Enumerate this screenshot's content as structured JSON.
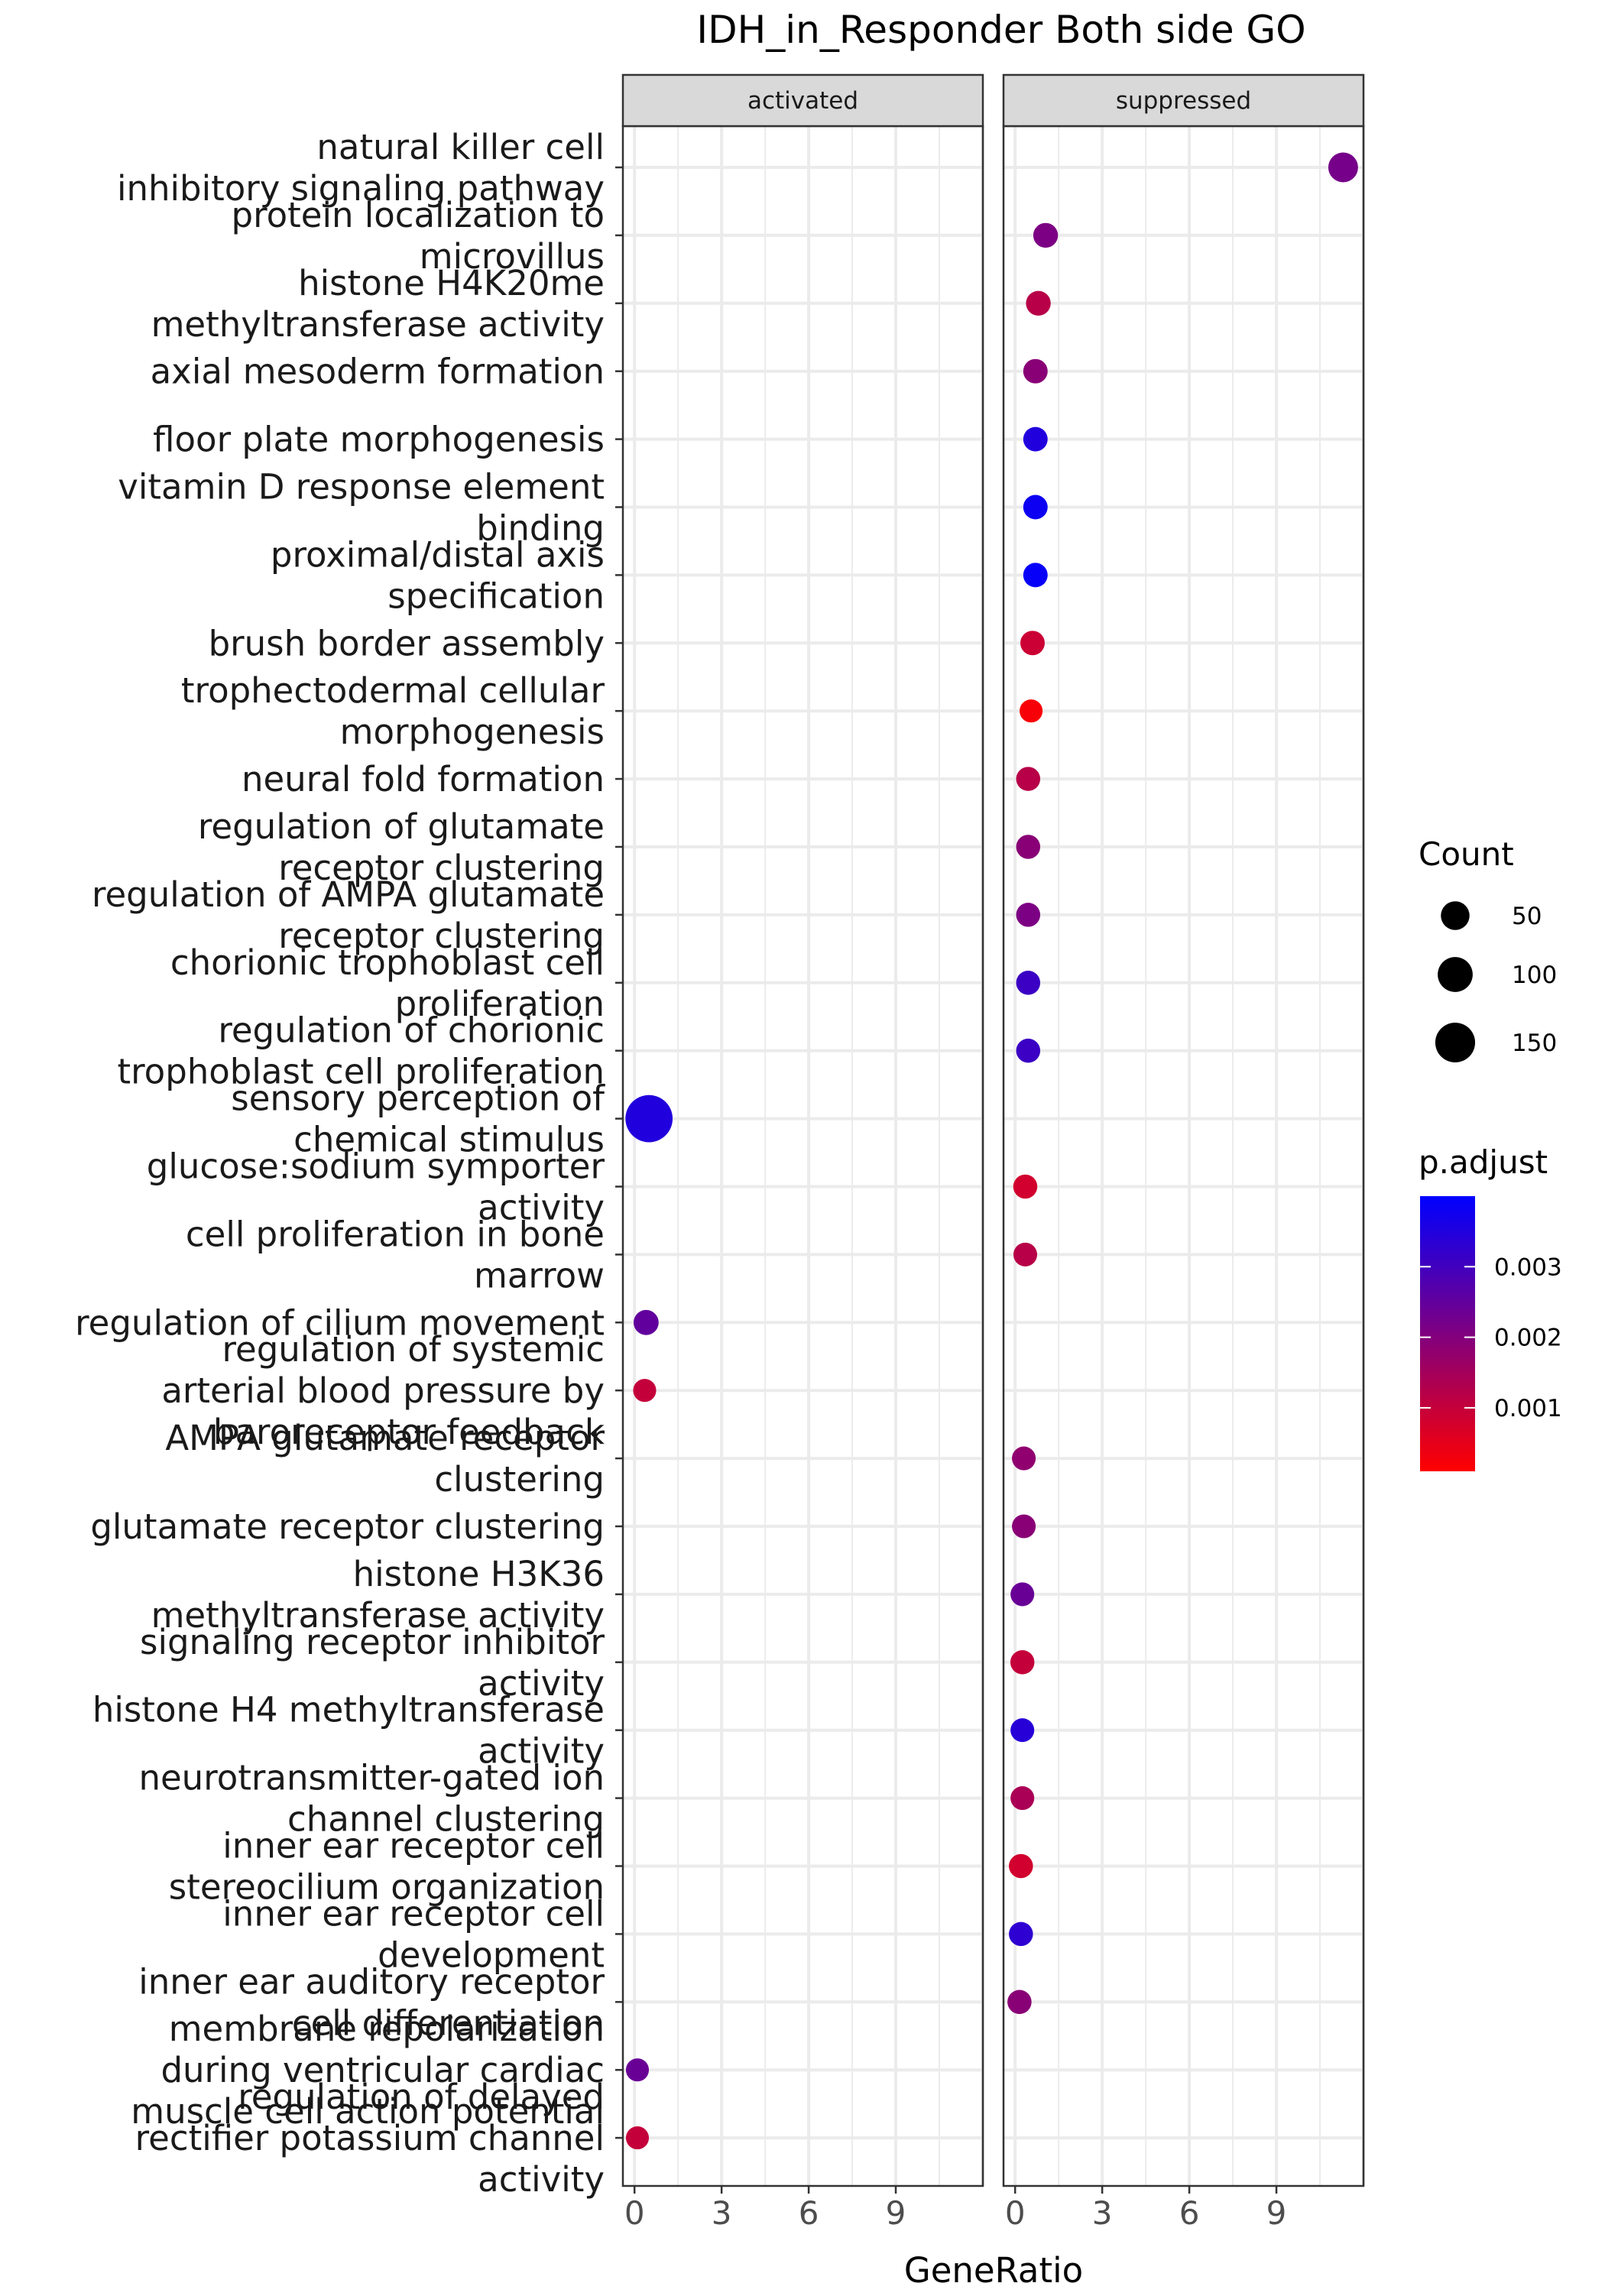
{
  "chart_data": {
    "type": "scatter",
    "title": "IDH_in_Responder Both side GO",
    "xlabel": "GeneRatio",
    "ylabel": "",
    "panels": [
      "activated",
      "suppressed"
    ],
    "xlim": [
      -0.4,
      12
    ],
    "xticks": [
      "0",
      "3",
      "6",
      "9"
    ],
    "grid": true,
    "categories": [
      [
        "natural killer cell",
        "inhibitory signaling pathway"
      ],
      [
        "protein localization to",
        "microvillus"
      ],
      [
        "histone H4K20me",
        "methyltransferase activity"
      ],
      [
        "axial mesoderm formation"
      ],
      [
        "floor plate morphogenesis"
      ],
      [
        "vitamin D response element",
        "binding"
      ],
      [
        "proximal/distal axis",
        "specification"
      ],
      [
        "brush border assembly"
      ],
      [
        "trophectodermal cellular",
        "morphogenesis"
      ],
      [
        "neural fold formation"
      ],
      [
        "regulation of glutamate",
        "receptor clustering"
      ],
      [
        "regulation of AMPA glutamate",
        "receptor clustering"
      ],
      [
        "chorionic trophoblast cell",
        "proliferation"
      ],
      [
        "regulation of chorionic",
        "trophoblast cell proliferation"
      ],
      [
        "sensory perception of",
        "chemical stimulus"
      ],
      [
        "glucose:sodium symporter",
        "activity"
      ],
      [
        "cell proliferation in bone",
        "marrow"
      ],
      [
        "regulation of cilium movement"
      ],
      [
        "regulation of systemic",
        "arterial blood pressure by",
        "baroreceptor feedback"
      ],
      [
        "AMPA glutamate receptor",
        "clustering"
      ],
      [
        "glutamate receptor clustering"
      ],
      [
        "histone H3K36",
        "methyltransferase activity"
      ],
      [
        "signaling receptor inhibitor",
        "activity"
      ],
      [
        "histone H4 methyltransferase",
        "activity"
      ],
      [
        "neurotransmitter-gated ion",
        "channel clustering"
      ],
      [
        "inner ear receptor cell",
        "stereocilium organization"
      ],
      [
        "inner ear receptor cell",
        "development"
      ],
      [
        "inner ear auditory receptor",
        "cell differentiation"
      ],
      [
        "membrane repolarization",
        "during ventricular cardiac",
        "muscle cell action potential"
      ],
      [
        "regulation of delayed",
        "rectifier potassium channel",
        "activity"
      ]
    ],
    "points": [
      {
        "panel": "suppressed",
        "category": 0,
        "x": 11.3,
        "count": 35,
        "padjust": 0.0022
      },
      {
        "panel": "suppressed",
        "category": 1,
        "x": 1.05,
        "count": 15,
        "padjust": 0.0021
      },
      {
        "panel": "suppressed",
        "category": 2,
        "x": 0.8,
        "count": 15,
        "padjust": 0.0012
      },
      {
        "panel": "suppressed",
        "category": 3,
        "x": 0.7,
        "count": 14,
        "padjust": 0.0019
      },
      {
        "panel": "suppressed",
        "category": 4,
        "x": 0.7,
        "count": 14,
        "padjust": 0.0035
      },
      {
        "panel": "suppressed",
        "category": 5,
        "x": 0.7,
        "count": 14,
        "padjust": 0.0038
      },
      {
        "panel": "suppressed",
        "category": 6,
        "x": 0.7,
        "count": 14,
        "padjust": 0.0039
      },
      {
        "panel": "suppressed",
        "category": 7,
        "x": 0.6,
        "count": 14,
        "padjust": 0.0009
      },
      {
        "panel": "suppressed",
        "category": 8,
        "x": 0.55,
        "count": 10,
        "padjust": 0.0002
      },
      {
        "panel": "suppressed",
        "category": 9,
        "x": 0.45,
        "count": 13,
        "padjust": 0.0012
      },
      {
        "panel": "suppressed",
        "category": 10,
        "x": 0.45,
        "count": 13,
        "padjust": 0.0019
      },
      {
        "panel": "suppressed",
        "category": 11,
        "x": 0.45,
        "count": 13,
        "padjust": 0.0021
      },
      {
        "panel": "suppressed",
        "category": 12,
        "x": 0.45,
        "count": 13,
        "padjust": 0.0031
      },
      {
        "panel": "suppressed",
        "category": 13,
        "x": 0.45,
        "count": 13,
        "padjust": 0.0031
      },
      {
        "panel": "activated",
        "category": 14,
        "x": 0.5,
        "count": 170,
        "padjust": 0.0035
      },
      {
        "panel": "suppressed",
        "category": 15,
        "x": 0.35,
        "count": 13,
        "padjust": 0.0008
      },
      {
        "panel": "suppressed",
        "category": 16,
        "x": 0.35,
        "count": 12,
        "padjust": 0.0012
      },
      {
        "panel": "activated",
        "category": 17,
        "x": 0.4,
        "count": 16,
        "padjust": 0.0025
      },
      {
        "panel": "activated",
        "category": 18,
        "x": 0.35,
        "count": 10,
        "padjust": 0.001
      },
      {
        "panel": "suppressed",
        "category": 19,
        "x": 0.3,
        "count": 12,
        "padjust": 0.0018
      },
      {
        "panel": "suppressed",
        "category": 20,
        "x": 0.3,
        "count": 12,
        "padjust": 0.0019
      },
      {
        "panel": "suppressed",
        "category": 21,
        "x": 0.25,
        "count": 12,
        "padjust": 0.0024
      },
      {
        "panel": "suppressed",
        "category": 22,
        "x": 0.25,
        "count": 13,
        "padjust": 0.001
      },
      {
        "panel": "suppressed",
        "category": 23,
        "x": 0.25,
        "count": 12,
        "padjust": 0.0034
      },
      {
        "panel": "suppressed",
        "category": 24,
        "x": 0.25,
        "count": 12,
        "padjust": 0.0014
      },
      {
        "panel": "suppressed",
        "category": 25,
        "x": 0.2,
        "count": 13,
        "padjust": 0.0008
      },
      {
        "panel": "suppressed",
        "category": 26,
        "x": 0.2,
        "count": 13,
        "padjust": 0.0033
      },
      {
        "panel": "suppressed",
        "category": 27,
        "x": 0.15,
        "count": 13,
        "padjust": 0.0019
      },
      {
        "panel": "activated",
        "category": 28,
        "x": 0.1,
        "count": 10,
        "padjust": 0.0024
      },
      {
        "panel": "activated",
        "category": 29,
        "x": 0.1,
        "count": 10,
        "padjust": 0.001
      }
    ],
    "legend_size": {
      "title": "Count",
      "entries": [
        {
          "label": "50",
          "count": 50
        },
        {
          "label": "100",
          "count": 100
        },
        {
          "label": "150",
          "count": 150
        }
      ]
    },
    "legend_color": {
      "title": "p.adjust",
      "range": [
        0.0001,
        0.004
      ],
      "low_color": "#ff0000",
      "high_color": "#0000ff",
      "ticks": [
        {
          "label": "0.003",
          "value": 0.003
        },
        {
          "label": "0.002",
          "value": 0.002
        },
        {
          "label": "0.001",
          "value": 0.001
        }
      ]
    },
    "legend_placement": "right",
    "colors": {
      "strip_bg": "#d9d9d9",
      "grid": "#ebebeb",
      "frame": "#333333"
    }
  }
}
